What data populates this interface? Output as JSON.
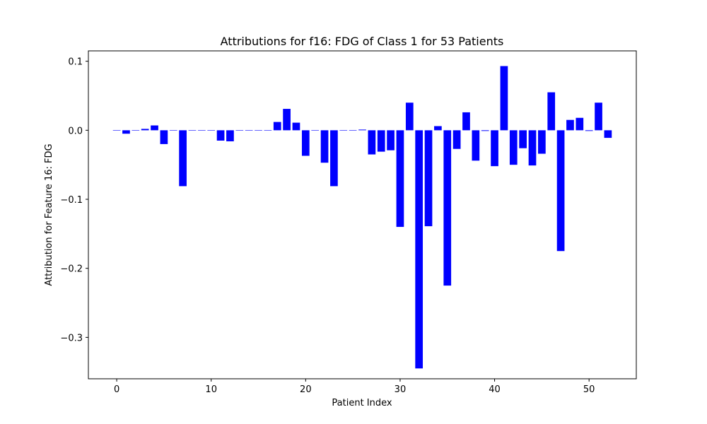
{
  "chart_data": {
    "type": "bar",
    "title": "Attributions for f16: FDG of Class 1 for 53 Patients",
    "xlabel": "Patient Index",
    "ylabel": "Attribution for Feature 16: FDG",
    "xlim": [
      -3,
      55
    ],
    "ylim": [
      -0.36,
      0.115
    ],
    "xticks": [
      0,
      10,
      20,
      30,
      40,
      50
    ],
    "yticks": [
      0.1,
      0.0,
      -0.1,
      -0.2,
      -0.3
    ],
    "ytick_labels": [
      "0.1",
      "0.0",
      "−0.1",
      "−0.2",
      "−0.3"
    ],
    "bar_width": 0.8,
    "bar_color": "#0000ff",
    "grid": false,
    "x": [
      0,
      1,
      2,
      3,
      4,
      5,
      6,
      7,
      8,
      9,
      10,
      11,
      12,
      13,
      14,
      15,
      16,
      17,
      18,
      19,
      20,
      21,
      22,
      23,
      24,
      25,
      26,
      27,
      28,
      29,
      30,
      31,
      32,
      33,
      34,
      35,
      36,
      37,
      38,
      39,
      40,
      41,
      42,
      43,
      44,
      45,
      46,
      47,
      48,
      49,
      50,
      51,
      52
    ],
    "values": [
      0,
      -0.005,
      0,
      0.002,
      0.007,
      -0.02,
      0,
      -0.081,
      0,
      0,
      0,
      -0.015,
      -0.016,
      0,
      0,
      0,
      0,
      0.012,
      0.031,
      0.011,
      -0.037,
      0,
      -0.047,
      -0.081,
      0,
      0,
      0.001,
      -0.035,
      -0.031,
      -0.029,
      -0.14,
      0.04,
      -0.345,
      -0.139,
      0.006,
      -0.225,
      -0.027,
      0.026,
      -0.044,
      -0.001,
      -0.052,
      0.093,
      -0.05,
      -0.026,
      -0.051,
      -0.034,
      0.055,
      -0.175,
      0.015,
      0.018,
      -0.001,
      0.04,
      -0.011
    ]
  }
}
